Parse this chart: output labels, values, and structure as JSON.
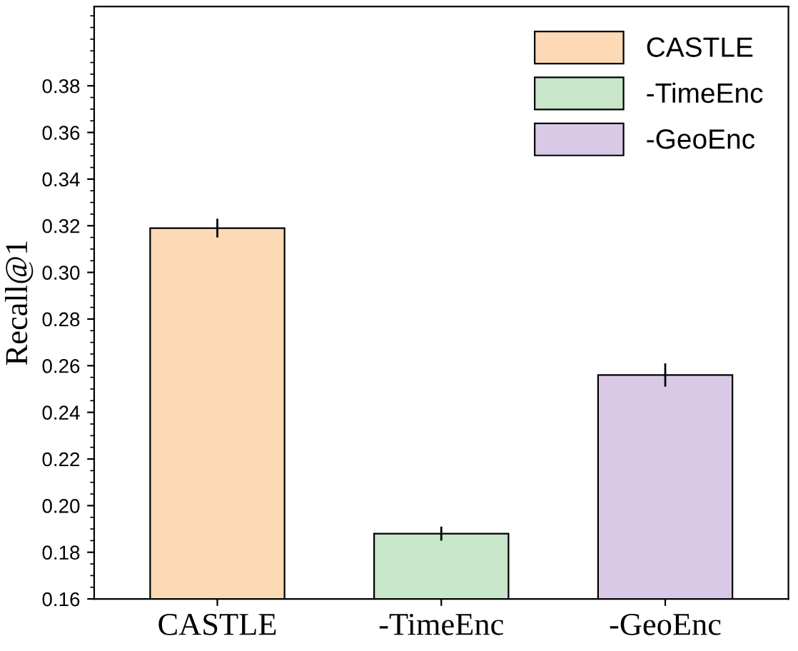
{
  "chart_data": {
    "type": "bar",
    "ylabel": "Recall@1",
    "categories": [
      "CASTLE",
      "-TimeEnc",
      "-GeoEnc"
    ],
    "series": [
      {
        "name": "CASTLE",
        "color": "#fdd9b5",
        "values": [
          0.319,
          null,
          null
        ],
        "errors": [
          0.004,
          null,
          null
        ]
      },
      {
        "name": "-TimeEnc",
        "color": "#c8e6c9",
        "values": [
          null,
          0.188,
          null
        ],
        "errors": [
          null,
          0.003,
          null
        ]
      },
      {
        "name": "-GeoEnc",
        "color": "#d9c8e6",
        "values": [
          null,
          null,
          0.256
        ],
        "errors": [
          null,
          null,
          0.005
        ]
      }
    ],
    "ylim": [
      0.16,
      0.414
    ],
    "yticks": [
      0.16,
      0.18,
      {
        "value": 0.2,
        "label": "0.20"
      },
      0.22,
      0.24,
      0.26,
      0.28,
      {
        "value": 0.3,
        "label": "0.30"
      },
      0.32,
      0.34,
      0.36,
      0.38
    ],
    "grid": false,
    "legend": "top right"
  }
}
